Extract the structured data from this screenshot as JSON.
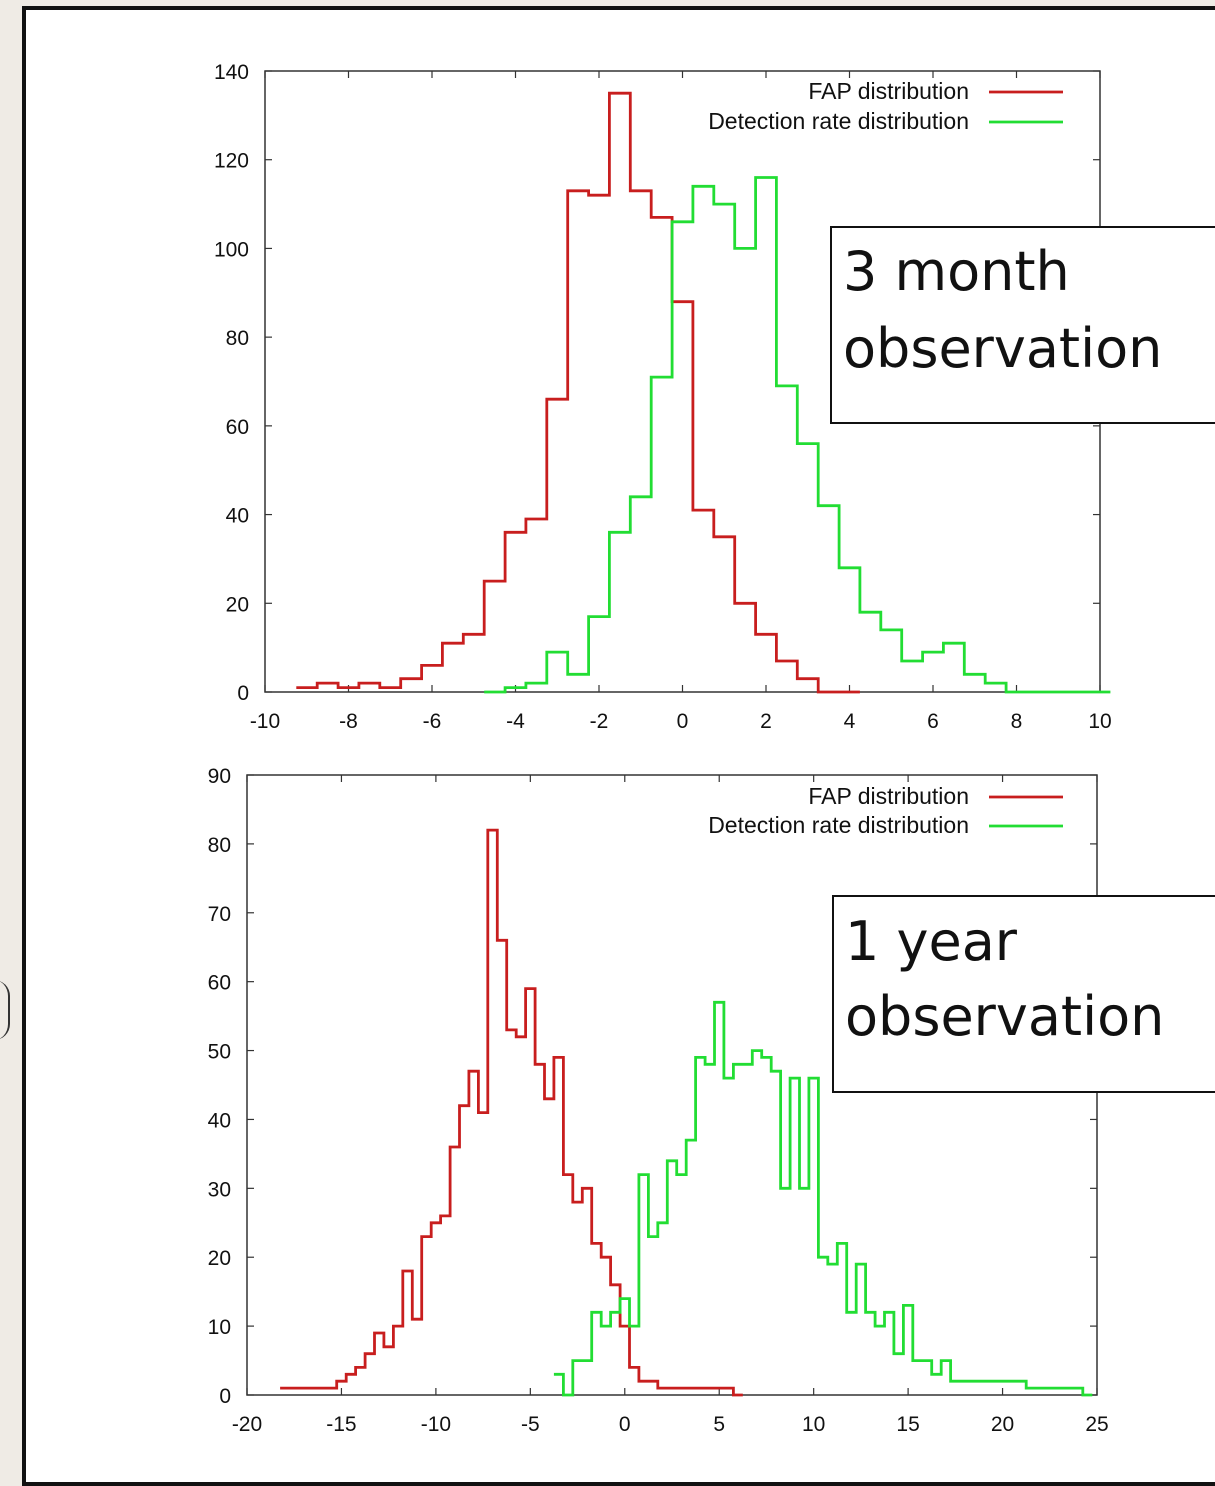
{
  "colors": {
    "fap": "#c81e1e",
    "detection": "#22dd33"
  },
  "chart_data": [
    {
      "type": "line",
      "step": true,
      "title": "",
      "annotation": [
        "3 month",
        "observation"
      ],
      "xlim": [
        -10,
        10
      ],
      "ylim": [
        0,
        140
      ],
      "xticks": [
        -10,
        -8,
        -6,
        -4,
        -2,
        0,
        2,
        4,
        6,
        8,
        10
      ],
      "yticks": [
        0,
        20,
        40,
        60,
        80,
        100,
        120,
        140
      ],
      "xlabel": "",
      "ylabel": "",
      "legend_position": "top-right",
      "series": [
        {
          "name": "FAP distribution",
          "color": "#c81e1e",
          "x": [
            -9.0,
            -8.5,
            -8.0,
            -7.5,
            -7.0,
            -6.5,
            -6.0,
            -5.5,
            -5.0,
            -4.5,
            -4.0,
            -3.5,
            -3.0,
            -2.5,
            -2.0,
            -1.5,
            -1.0,
            -0.5,
            0.0,
            0.5,
            1.0,
            1.5,
            2.0,
            2.5,
            3.0,
            3.5,
            4.0
          ],
          "y": [
            1,
            2,
            1,
            2,
            1,
            3,
            6,
            11,
            13,
            25,
            36,
            39,
            66,
            113,
            112,
            135,
            113,
            107,
            88,
            41,
            35,
            20,
            13,
            7,
            3,
            0,
            0
          ]
        },
        {
          "name": "Detection rate distribution",
          "color": "#22dd33",
          "x": [
            -4.5,
            -4.0,
            -3.5,
            -3.0,
            -2.5,
            -2.0,
            -1.5,
            -1.0,
            -0.5,
            0.0,
            0.5,
            1.0,
            1.5,
            2.0,
            2.5,
            3.0,
            3.5,
            4.0,
            4.5,
            5.0,
            5.5,
            6.0,
            6.5,
            7.0,
            7.5,
            8.0,
            8.5,
            9.0,
            9.5,
            10.0
          ],
          "y": [
            0,
            1,
            2,
            9,
            4,
            17,
            36,
            44,
            71,
            106,
            114,
            110,
            100,
            116,
            69,
            56,
            42,
            28,
            18,
            14,
            7,
            9,
            11,
            4,
            2,
            0,
            0,
            0,
            0,
            0
          ]
        }
      ]
    },
    {
      "type": "line",
      "step": true,
      "title": "",
      "annotation": [
        "1 year",
        "observation"
      ],
      "xlim": [
        -20,
        25
      ],
      "ylim": [
        0,
        90
      ],
      "xticks": [
        -20,
        -15,
        -10,
        -5,
        0,
        5,
        10,
        15,
        20,
        25
      ],
      "yticks": [
        0,
        10,
        20,
        30,
        40,
        50,
        60,
        70,
        80,
        90
      ],
      "xlabel": "",
      "ylabel": "",
      "legend_position": "top-right",
      "series": [
        {
          "name": "FAP distribution",
          "color": "#c81e1e",
          "x": [
            -18.0,
            -17.5,
            -17.0,
            -16.5,
            -16.0,
            -15.5,
            -15.0,
            -14.5,
            -14.0,
            -13.5,
            -13.0,
            -12.5,
            -12.0,
            -11.5,
            -11.0,
            -10.5,
            -10.0,
            -9.5,
            -9.0,
            -8.5,
            -8.0,
            -7.5,
            -7.0,
            -6.5,
            -6.0,
            -5.5,
            -5.0,
            -4.5,
            -4.0,
            -3.5,
            -3.0,
            -2.5,
            -2.0,
            -1.5,
            -1.0,
            -0.5,
            0.0,
            0.5,
            1.0,
            1.5,
            2.0,
            2.5,
            3.0,
            3.5,
            4.0,
            4.5,
            5.0,
            5.5,
            6.0
          ],
          "y": [
            1,
            1,
            1,
            1,
            1,
            1,
            2,
            3,
            4,
            6,
            9,
            7,
            10,
            18,
            11,
            23,
            25,
            26,
            36,
            42,
            47,
            41,
            82,
            66,
            53,
            52,
            59,
            48,
            43,
            49,
            32,
            28,
            30,
            22,
            20,
            16,
            10,
            4,
            2,
            2,
            1,
            1,
            1,
            1,
            1,
            1,
            1,
            1,
            0
          ]
        },
        {
          "name": "Detection rate distribution",
          "color": "#22dd33",
          "x": [
            -3.5,
            -3.0,
            -2.5,
            -2.0,
            -1.5,
            -1.0,
            -0.5,
            0.0,
            0.5,
            1.0,
            1.5,
            2.0,
            2.5,
            3.0,
            3.5,
            4.0,
            4.5,
            5.0,
            5.5,
            6.0,
            6.5,
            7.0,
            7.5,
            8.0,
            8.5,
            9.0,
            9.5,
            10.0,
            10.5,
            11.0,
            11.5,
            12.0,
            12.5,
            13.0,
            13.5,
            14.0,
            14.5,
            15.0,
            15.5,
            16.0,
            16.5,
            17.0,
            17.5,
            18.0,
            18.5,
            19.0,
            19.5,
            20.0,
            20.5,
            21.0,
            21.5,
            22.0,
            22.5,
            23.0,
            23.5,
            24.0,
            24.5
          ],
          "y": [
            3,
            0,
            5,
            5,
            12,
            10,
            12,
            14,
            10,
            32,
            23,
            25,
            34,
            32,
            37,
            49,
            48,
            57,
            46,
            48,
            48,
            50,
            49,
            47,
            30,
            46,
            30,
            46,
            20,
            19,
            22,
            12,
            19,
            12,
            10,
            12,
            6,
            13,
            5,
            5,
            3,
            5,
            2,
            2,
            2,
            2,
            2,
            2,
            2,
            2,
            1,
            1,
            1,
            1,
            1,
            1,
            0
          ]
        }
      ]
    }
  ]
}
